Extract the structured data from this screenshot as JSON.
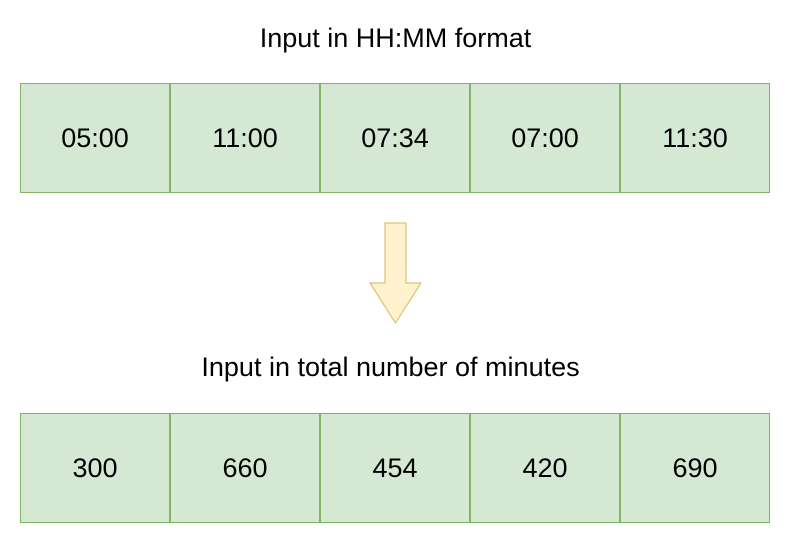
{
  "top": {
    "title": "Input in HH:MM format",
    "cells": [
      "05:00",
      "11:00",
      "07:34",
      "07:00",
      "11:30"
    ]
  },
  "bottom": {
    "title": "Input in total number of minutes",
    "cells": [
      "300",
      "660",
      "454",
      "420",
      "690"
    ]
  },
  "colors": {
    "cell_fill": "#d5e8d4",
    "cell_border": "#82b366",
    "arrow_fill": "#fff2cc",
    "arrow_border": "#d6b656"
  },
  "icons": {
    "arrow": "down-arrow-icon"
  }
}
